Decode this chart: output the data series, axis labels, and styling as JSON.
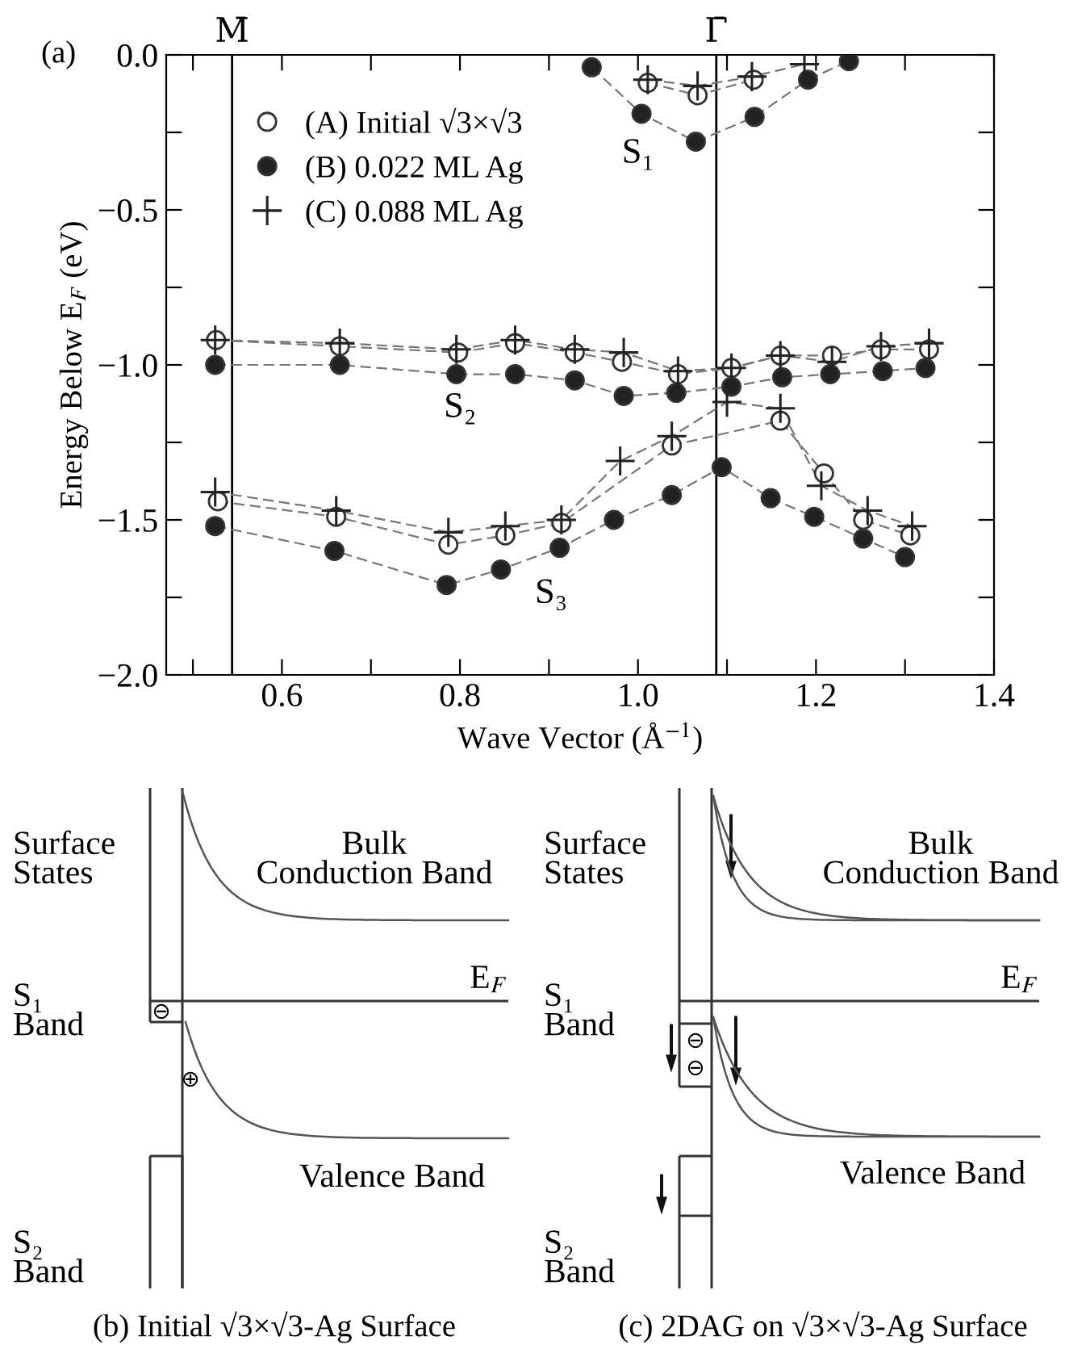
{
  "chart_data": [
    {
      "type": "line",
      "xlabel": "Wave Vector (Å$^{−1}$)",
      "ylabel": "Energy Below E$_{F}$ (eV)",
      "xlim": [
        0.47,
        1.4
      ],
      "ylim": [
        -2.0,
        0.0
      ],
      "xticks": [
        {
          "value": 0.5,
          "label": null
        },
        0.6,
        {
          "value": 0.7,
          "label": null
        },
        0.8,
        {
          "value": 0.9,
          "label": null
        },
        {
          "value": 1.0,
          "label": "1.0"
        },
        {
          "value": 1.1,
          "label": null
        },
        1.2,
        {
          "value": 1.3,
          "label": null
        },
        1.4
      ],
      "yticks": [
        {
          "value": 0.0,
          "label": "0.0"
        },
        {
          "value": -0.25,
          "label": null
        },
        {
          "value": -0.5,
          "label": "−0.5"
        },
        {
          "value": -0.75,
          "label": null
        },
        {
          "value": -1.0,
          "label": "−1.0"
        },
        {
          "value": -1.25,
          "label": null
        },
        {
          "value": -1.5,
          "label": "−1.5"
        },
        {
          "value": -1.75,
          "label": null
        },
        {
          "value": -2.0,
          "label": "−2.0"
        }
      ],
      "grid": false,
      "legend": "top left",
      "line_style": "dashed",
      "ref_lines": [
        {
          "axis": "x",
          "value": 0.544,
          "label": "M̄",
          "color": "#000000"
        },
        {
          "axis": "x",
          "value": 1.088,
          "label": "Γ̄",
          "color": "#000000"
        }
      ],
      "annotations": [
        "(a)",
        "S₁",
        "S₂",
        "S₃"
      ],
      "series": [
        {
          "name": "(A) Initial √3×√3",
          "color": "#ffffff",
          "marker": "circle",
          "x": [
            0.526,
            0.665,
            0.798,
            0.862,
            0.929,
            0.982,
            1.045,
            1.105,
            1.16,
            1.218,
            1.273,
            1.327
          ],
          "values": [
            -0.92,
            -0.94,
            -0.96,
            -0.93,
            -0.96,
            -0.99,
            -1.03,
            -1.01,
            -0.97,
            -0.97,
            -0.95,
            -0.95
          ]
        },
        {
          "color": "#ffffff",
          "marker": "circle",
          "x": [
            0.528,
            0.661,
            0.787,
            0.851,
            0.914,
            1.038,
            1.16,
            1.209,
            1.253,
            1.306
          ],
          "values": [
            -1.44,
            -1.49,
            -1.58,
            -1.55,
            -1.51,
            -1.26,
            -1.18,
            -1.35,
            -1.5,
            -1.55
          ]
        },
        {
          "color": "#ffffff",
          "marker": "circle",
          "x": [
            1.011,
            1.067,
            1.13
          ],
          "values": [
            -0.09,
            -0.13,
            -0.08
          ]
        },
        {
          "name": "(B) 0.022 ML Ag",
          "color": "#222222",
          "marker": "circle",
          "x": [
            0.525,
            0.665,
            0.796,
            0.862,
            0.929,
            0.984,
            1.043,
            1.105,
            1.162,
            1.216,
            1.275,
            1.323
          ],
          "values": [
            -1.0,
            -1.0,
            -1.03,
            -1.03,
            -1.05,
            -1.1,
            -1.09,
            -1.07,
            -1.04,
            -1.03,
            -1.02,
            -1.01
          ]
        },
        {
          "color": "#222222",
          "marker": "circle",
          "x": [
            0.525,
            0.659,
            0.785,
            0.846,
            0.912,
            0.973,
            1.038,
            1.094,
            1.149,
            1.198,
            1.253,
            1.3
          ],
          "values": [
            -1.52,
            -1.6,
            -1.71,
            -1.66,
            -1.59,
            -1.5,
            -1.42,
            -1.33,
            -1.43,
            -1.49,
            -1.56,
            -1.62
          ]
        },
        {
          "color": "#222222",
          "marker": "circle",
          "x": [
            0.948,
            1.004,
            1.065,
            1.131,
            1.191,
            1.237
          ],
          "values": [
            -0.04,
            -0.19,
            -0.28,
            -0.2,
            -0.08,
            -0.02
          ]
        },
        {
          "name": "(C) 0.088 ML Ag",
          "color": "#222222",
          "marker": "cross",
          "x": [
            0.525,
            0.665,
            0.796,
            0.862,
            0.929,
            0.984,
            1.045,
            1.105,
            1.16,
            1.218,
            1.273,
            1.327
          ],
          "values": [
            -0.92,
            -0.93,
            -0.95,
            -0.92,
            -0.95,
            -0.96,
            -1.02,
            -1.01,
            -0.97,
            -0.99,
            -0.94,
            -0.93
          ]
        },
        {
          "color": "#222222",
          "marker": "cross",
          "x": [
            0.525,
            0.661,
            0.787,
            0.851,
            0.914,
            0.98,
            1.038,
            1.1,
            1.16,
            1.206,
            1.258,
            1.308
          ],
          "values": [
            -1.41,
            -1.47,
            -1.54,
            -1.52,
            -1.5,
            -1.31,
            -1.23,
            -1.12,
            -1.14,
            -1.39,
            -1.47,
            -1.52
          ]
        },
        {
          "color": "#222222",
          "marker": "cross",
          "x": [
            1.011,
            1.067,
            1.128,
            1.187
          ],
          "values": [
            -0.08,
            -0.1,
            -0.07,
            -0.03
          ]
        }
      ]
    },
    {
      "type": "other",
      "title": "(b) Initial √3×√3-Ag Surface",
      "annotations": [
        "Surface\nStates",
        "Bulk\nConduction Band",
        "E$_{F}$",
        "S₁\nBand",
        "Valence Band",
        "S₂\nBand",
        "⊖",
        "⊕"
      ]
    },
    {
      "type": "other",
      "title": "(c) 2DAG on √3×√3-Ag Surface",
      "annotations": [
        "Surface\nStates",
        "Bulk\nConduction Band",
        "E$_{F}$",
        "S₁\nBand",
        "Valence Band",
        "S₂\nBand",
        "⊖",
        "⊖"
      ]
    }
  ]
}
